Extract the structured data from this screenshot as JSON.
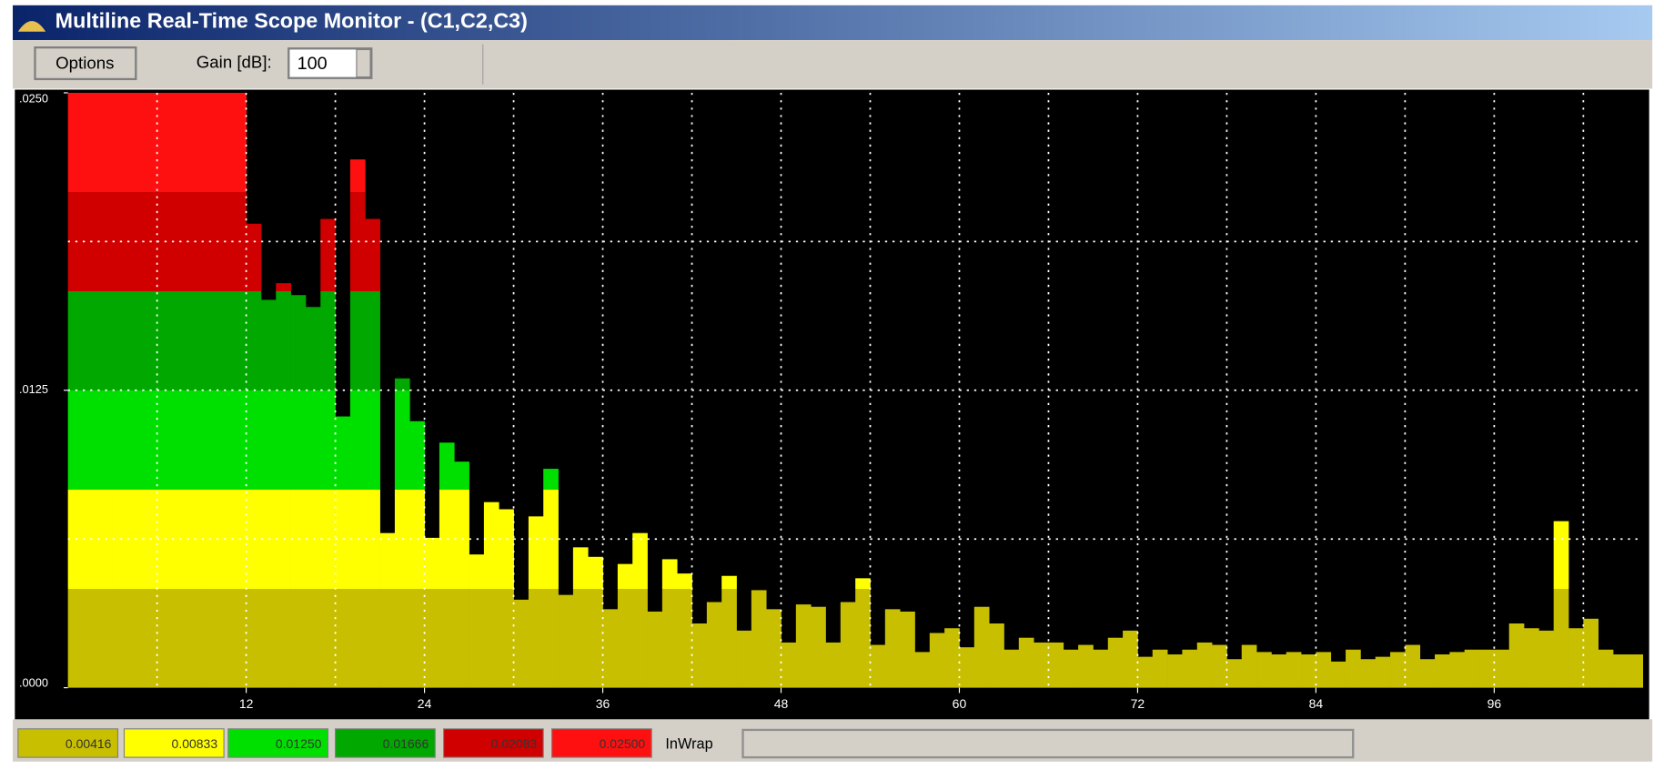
{
  "window": {
    "title": "Multiline Real-Time Scope Monitor - (C1,C2,C3)",
    "toolbar": {
      "options_button": "Options",
      "gain_label": "Gain [dB]:",
      "gain_value": 100
    },
    "status_text": "InWrap"
  },
  "chart_data": {
    "type": "histogram",
    "bins": [
      0,
      1,
      2,
      3,
      4,
      5,
      6,
      7,
      8,
      9,
      10,
      11,
      12,
      13,
      14,
      15,
      16,
      17,
      18,
      19,
      20,
      21,
      22,
      23,
      24,
      25,
      26,
      27,
      28,
      29,
      30,
      31,
      32,
      33,
      34,
      35,
      36,
      37,
      38,
      39,
      40,
      41,
      42,
      43,
      44,
      45,
      46,
      47,
      48,
      49,
      50,
      51,
      52,
      53,
      54,
      55,
      56,
      57,
      58,
      59,
      60,
      61,
      62,
      63,
      64,
      65,
      66,
      67,
      68,
      69,
      70,
      71,
      72,
      73,
      74,
      75,
      76,
      77,
      78,
      79,
      80,
      81,
      82,
      83,
      84,
      85,
      86,
      87,
      88,
      89,
      90,
      91,
      92,
      93,
      94,
      95,
      96,
      97,
      98,
      99,
      100,
      101,
      102,
      103,
      104,
      105,
      106
    ],
    "values": [
      0.025,
      0.025,
      0.025,
      0.025,
      0.025,
      0.025,
      0.025,
      0.025,
      0.025,
      0.025,
      0.025,
      0.025,
      0.0195,
      0.0163,
      0.017,
      0.0165,
      0.016,
      0.0197,
      0.0114,
      0.0222,
      0.0197,
      0.0065,
      0.013,
      0.0112,
      0.0063,
      0.0103,
      0.0095,
      0.0056,
      0.0078,
      0.0075,
      0.0037,
      0.0072,
      0.0092,
      0.0039,
      0.0059,
      0.0055,
      0.0033,
      0.0052,
      0.0065,
      0.0032,
      0.0054,
      0.0048,
      0.0027,
      0.0036,
      0.0047,
      0.0024,
      0.0041,
      0.0033,
      0.0019,
      0.0035,
      0.0034,
      0.0019,
      0.0036,
      0.0046,
      0.0018,
      0.0033,
      0.0032,
      0.0015,
      0.0023,
      0.0025,
      0.0017,
      0.0034,
      0.0027,
      0.0016,
      0.0021,
      0.0019,
      0.0019,
      0.0016,
      0.0018,
      0.0016,
      0.0021,
      0.0024,
      0.0013,
      0.0016,
      0.0014,
      0.0016,
      0.0019,
      0.0018,
      0.0012,
      0.0018,
      0.0015,
      0.0014,
      0.0015,
      0.0014,
      0.0015,
      0.0011,
      0.0016,
      0.0012,
      0.0013,
      0.0015,
      0.0018,
      0.0012,
      0.0014,
      0.0015,
      0.0016,
      0.0016,
      0.0016,
      0.0027,
      0.0025,
      0.0024,
      0.007,
      0.0025,
      0.0029,
      0.0016,
      0.0014,
      0.0014
    ],
    "xlim": [
      0,
      106
    ],
    "xticks": [
      12,
      24,
      36,
      48,
      60,
      72,
      84,
      96
    ],
    "xgrid": [
      6,
      12,
      18,
      24,
      30,
      36,
      42,
      48,
      54,
      60,
      66,
      72,
      78,
      84,
      90,
      96,
      102
    ],
    "ylim": [
      0,
      0.025
    ],
    "yticks": [
      {
        "value": 0,
        "label": ".0000"
      },
      {
        "value": 0.0125,
        "label": ".0125"
      },
      {
        "value": 0.025,
        "label": ".0250"
      }
    ],
    "ygrid": [
      0.00625,
      0.0125,
      0.01875
    ],
    "thresholds": [
      {
        "value": 0.00416,
        "label": "0.00416",
        "color": "#c8bf00"
      },
      {
        "value": 0.00833,
        "label": "0.00833",
        "color": "#ffff00"
      },
      {
        "value": 0.0125,
        "label": "0.01250",
        "color": "#00e000"
      },
      {
        "value": 0.01666,
        "label": "0.01666",
        "color": "#00a800"
      },
      {
        "value": 0.02083,
        "label": "0.02083",
        "color": "#d00000"
      },
      {
        "value": 0.025,
        "label": "0.02500",
        "color": "#ff1010"
      }
    ]
  }
}
